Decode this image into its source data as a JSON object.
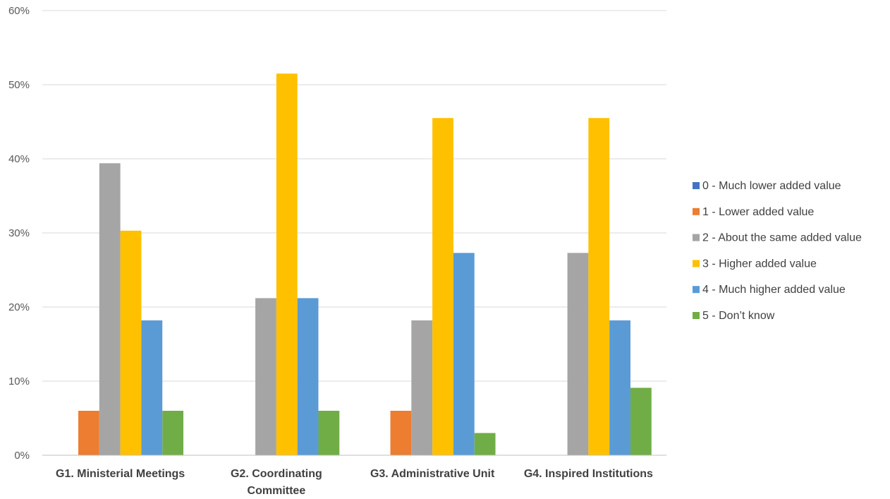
{
  "chart_data": {
    "type": "bar",
    "title": "",
    "xlabel": "",
    "ylabel": "",
    "ylim": [
      0,
      60
    ],
    "y_ticks": [
      "0%",
      "10%",
      "20%",
      "30%",
      "40%",
      "50%",
      "60%"
    ],
    "y_tick_values": [
      0,
      10,
      20,
      30,
      40,
      50,
      60
    ],
    "grid": true,
    "legend_position": "right",
    "categories": [
      [
        "G1. Ministerial Meetings"
      ],
      [
        "G2. Coordinating",
        "Committee"
      ],
      [
        "G3. Administrative Unit"
      ],
      [
        "G4. Inspired Institutions"
      ]
    ],
    "series": [
      {
        "name": "0 - Much lower added value",
        "color": "#4472c4",
        "values": [
          0,
          0,
          0,
          0
        ]
      },
      {
        "name": "1 - Lower added value",
        "color": "#ed7d31",
        "values": [
          6,
          0,
          6,
          0
        ]
      },
      {
        "name": "2 - About the same added value",
        "color": "#a5a5a5",
        "values": [
          39.4,
          21.2,
          18.2,
          27.3
        ]
      },
      {
        "name": "3 - Higher added value",
        "color": "#ffc000",
        "values": [
          30.3,
          51.5,
          45.5,
          45.5
        ]
      },
      {
        "name": "4 - Much higher added value",
        "color": "#5b9bd5",
        "values": [
          18.2,
          21.2,
          27.3,
          18.2
        ]
      },
      {
        "name": "5 - Don’t know",
        "color": "#70ad47",
        "values": [
          6,
          6,
          3,
          9.1
        ]
      }
    ]
  }
}
